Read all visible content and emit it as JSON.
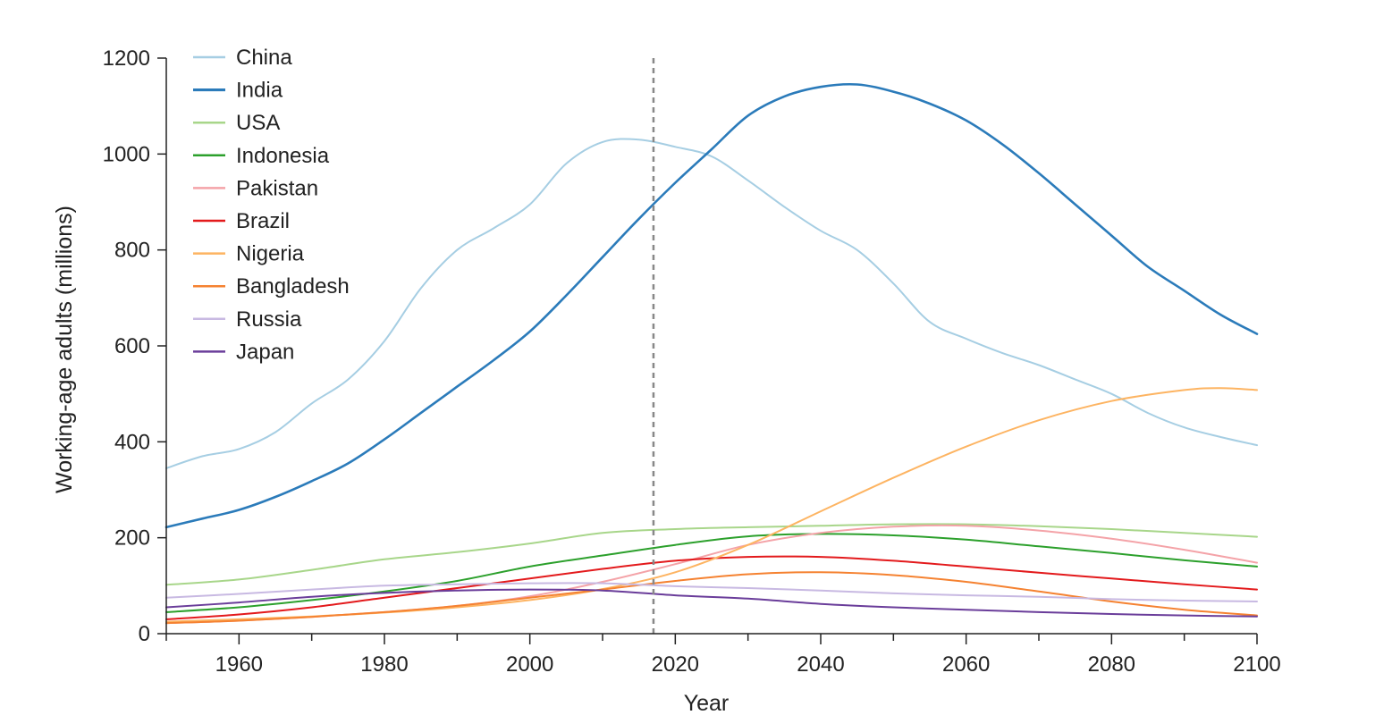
{
  "chart_data": {
    "type": "line",
    "title": "",
    "xlabel": "Year",
    "ylabel": "Working-age adults (millions)",
    "xlim": [
      1950,
      2100
    ],
    "ylim": [
      0,
      1200
    ],
    "x_ticks": [
      1960,
      1980,
      2000,
      2020,
      2040,
      2060,
      2080,
      2100
    ],
    "y_ticks": [
      0,
      200,
      400,
      600,
      800,
      1000,
      1200
    ],
    "grid": false,
    "legend_position": "top-left",
    "reference_line": {
      "x": 2017,
      "style": "dashed",
      "color": "#888888"
    },
    "series": [
      {
        "name": "China",
        "color": "#a6cee3",
        "stroke_width": 2,
        "points": [
          [
            1950,
            345
          ],
          [
            1955,
            370
          ],
          [
            1960,
            385
          ],
          [
            1965,
            420
          ],
          [
            1970,
            480
          ],
          [
            1975,
            530
          ],
          [
            1980,
            610
          ],
          [
            1985,
            720
          ],
          [
            1990,
            800
          ],
          [
            1995,
            845
          ],
          [
            2000,
            895
          ],
          [
            2005,
            980
          ],
          [
            2010,
            1025
          ],
          [
            2015,
            1030
          ],
          [
            2020,
            1015
          ],
          [
            2025,
            995
          ],
          [
            2030,
            945
          ],
          [
            2035,
            890
          ],
          [
            2040,
            840
          ],
          [
            2045,
            800
          ],
          [
            2050,
            730
          ],
          [
            2055,
            650
          ],
          [
            2060,
            615
          ],
          [
            2065,
            585
          ],
          [
            2070,
            560
          ],
          [
            2075,
            530
          ],
          [
            2080,
            500
          ],
          [
            2085,
            460
          ],
          [
            2090,
            430
          ],
          [
            2095,
            410
          ],
          [
            2100,
            393
          ]
        ]
      },
      {
        "name": "India",
        "color": "#2b7bba",
        "stroke_width": 2.6,
        "points": [
          [
            1950,
            222
          ],
          [
            1955,
            240
          ],
          [
            1960,
            258
          ],
          [
            1965,
            285
          ],
          [
            1970,
            318
          ],
          [
            1975,
            355
          ],
          [
            1980,
            405
          ],
          [
            1985,
            460
          ],
          [
            1990,
            515
          ],
          [
            1995,
            570
          ],
          [
            2000,
            630
          ],
          [
            2005,
            705
          ],
          [
            2010,
            785
          ],
          [
            2015,
            865
          ],
          [
            2020,
            940
          ],
          [
            2025,
            1010
          ],
          [
            2030,
            1080
          ],
          [
            2035,
            1120
          ],
          [
            2040,
            1140
          ],
          [
            2045,
            1145
          ],
          [
            2050,
            1130
          ],
          [
            2055,
            1105
          ],
          [
            2060,
            1070
          ],
          [
            2065,
            1020
          ],
          [
            2070,
            960
          ],
          [
            2075,
            895
          ],
          [
            2080,
            830
          ],
          [
            2085,
            765
          ],
          [
            2090,
            715
          ],
          [
            2095,
            665
          ],
          [
            2100,
            625
          ]
        ]
      },
      {
        "name": "USA",
        "color": "#a8d68a",
        "stroke_width": 2,
        "points": [
          [
            1950,
            102
          ],
          [
            1960,
            113
          ],
          [
            1970,
            133
          ],
          [
            1980,
            155
          ],
          [
            1990,
            170
          ],
          [
            2000,
            188
          ],
          [
            2010,
            210
          ],
          [
            2020,
            218
          ],
          [
            2030,
            222
          ],
          [
            2040,
            225
          ],
          [
            2050,
            228
          ],
          [
            2060,
            228
          ],
          [
            2070,
            224
          ],
          [
            2080,
            218
          ],
          [
            2090,
            210
          ],
          [
            2100,
            202
          ]
        ]
      },
      {
        "name": "Indonesia",
        "color": "#2ca02c",
        "stroke_width": 2,
        "points": [
          [
            1950,
            45
          ],
          [
            1960,
            55
          ],
          [
            1970,
            70
          ],
          [
            1980,
            88
          ],
          [
            1990,
            110
          ],
          [
            2000,
            140
          ],
          [
            2010,
            163
          ],
          [
            2020,
            185
          ],
          [
            2030,
            203
          ],
          [
            2040,
            208
          ],
          [
            2050,
            205
          ],
          [
            2060,
            196
          ],
          [
            2070,
            182
          ],
          [
            2080,
            168
          ],
          [
            2090,
            153
          ],
          [
            2100,
            140
          ]
        ]
      },
      {
        "name": "Pakistan",
        "color": "#f4a3a8",
        "stroke_width": 2,
        "points": [
          [
            1950,
            22
          ],
          [
            1960,
            27
          ],
          [
            1970,
            35
          ],
          [
            1980,
            45
          ],
          [
            1990,
            58
          ],
          [
            2000,
            78
          ],
          [
            2010,
            108
          ],
          [
            2020,
            145
          ],
          [
            2030,
            185
          ],
          [
            2040,
            210
          ],
          [
            2050,
            223
          ],
          [
            2060,
            225
          ],
          [
            2070,
            215
          ],
          [
            2080,
            198
          ],
          [
            2090,
            175
          ],
          [
            2100,
            148
          ]
        ]
      },
      {
        "name": "Brazil",
        "color": "#e31a1c",
        "stroke_width": 2,
        "points": [
          [
            1950,
            30
          ],
          [
            1960,
            40
          ],
          [
            1970,
            55
          ],
          [
            1980,
            75
          ],
          [
            1990,
            95
          ],
          [
            2000,
            115
          ],
          [
            2010,
            135
          ],
          [
            2020,
            152
          ],
          [
            2030,
            160
          ],
          [
            2040,
            160
          ],
          [
            2050,
            152
          ],
          [
            2060,
            140
          ],
          [
            2070,
            127
          ],
          [
            2080,
            115
          ],
          [
            2090,
            103
          ],
          [
            2100,
            92
          ]
        ]
      },
      {
        "name": "Nigeria",
        "color": "#fdb462",
        "stroke_width": 2,
        "points": [
          [
            1950,
            25
          ],
          [
            1960,
            30
          ],
          [
            1970,
            36
          ],
          [
            1980,
            44
          ],
          [
            1990,
            55
          ],
          [
            2000,
            70
          ],
          [
            2010,
            93
          ],
          [
            2020,
            128
          ],
          [
            2030,
            185
          ],
          [
            2040,
            255
          ],
          [
            2050,
            325
          ],
          [
            2060,
            390
          ],
          [
            2070,
            445
          ],
          [
            2080,
            485
          ],
          [
            2090,
            508
          ],
          [
            2095,
            512
          ],
          [
            2100,
            508
          ]
        ]
      },
      {
        "name": "Bangladesh",
        "color": "#f58231",
        "stroke_width": 2,
        "points": [
          [
            1950,
            22
          ],
          [
            1960,
            27
          ],
          [
            1970,
            35
          ],
          [
            1980,
            45
          ],
          [
            1990,
            58
          ],
          [
            2000,
            75
          ],
          [
            2010,
            92
          ],
          [
            2020,
            110
          ],
          [
            2030,
            124
          ],
          [
            2040,
            128
          ],
          [
            2050,
            122
          ],
          [
            2060,
            108
          ],
          [
            2070,
            88
          ],
          [
            2080,
            67
          ],
          [
            2090,
            50
          ],
          [
            2100,
            38
          ]
        ]
      },
      {
        "name": "Russia",
        "color": "#c8b9e2",
        "stroke_width": 2,
        "points": [
          [
            1950,
            75
          ],
          [
            1960,
            83
          ],
          [
            1970,
            92
          ],
          [
            1980,
            100
          ],
          [
            1990,
            103
          ],
          [
            2000,
            105
          ],
          [
            2010,
            105
          ],
          [
            2020,
            99
          ],
          [
            2030,
            95
          ],
          [
            2040,
            90
          ],
          [
            2050,
            84
          ],
          [
            2060,
            80
          ],
          [
            2070,
            77
          ],
          [
            2080,
            72
          ],
          [
            2090,
            69
          ],
          [
            2100,
            67
          ]
        ]
      },
      {
        "name": "Japan",
        "color": "#6a3d9a",
        "stroke_width": 2,
        "points": [
          [
            1950,
            55
          ],
          [
            1960,
            65
          ],
          [
            1970,
            77
          ],
          [
            1980,
            85
          ],
          [
            1990,
            90
          ],
          [
            2000,
            92
          ],
          [
            2010,
            90
          ],
          [
            2020,
            80
          ],
          [
            2030,
            73
          ],
          [
            2040,
            62
          ],
          [
            2050,
            55
          ],
          [
            2060,
            50
          ],
          [
            2070,
            45
          ],
          [
            2080,
            41
          ],
          [
            2090,
            38
          ],
          [
            2100,
            36
          ]
        ]
      }
    ]
  }
}
